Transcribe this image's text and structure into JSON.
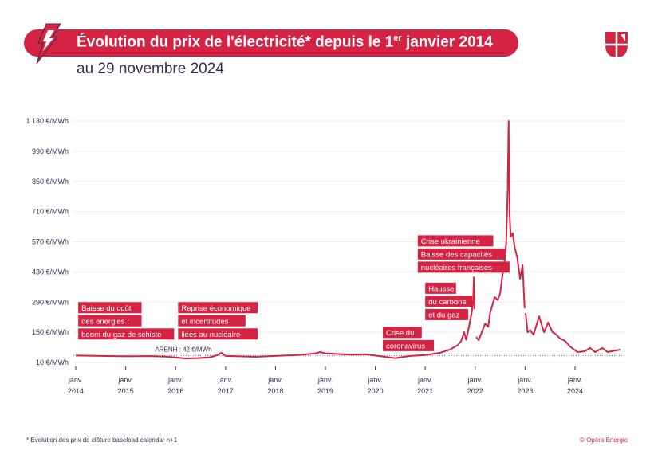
{
  "header": {
    "title_main": "Évolution du prix de l'électricité* depuis le 1",
    "title_sup": "er",
    "title_end": " janvier 2014",
    "subtitle": "au 29 novembre 2024"
  },
  "footer": {
    "note": "* Évolution des prix de clôture baseload calendar n+1",
    "copyright": "© Opéra Énergie"
  },
  "colors": {
    "accent": "#d52443",
    "text": "#3d2a4f",
    "grid": "#eeeeee"
  },
  "icons": {
    "left": "lightning-bolt-icon",
    "right": "opera-energie-logo"
  },
  "chart_data": {
    "type": "line",
    "ylim": [
      10,
      1130
    ],
    "yticks": [
      10,
      150,
      290,
      430,
      570,
      710,
      850,
      990,
      1130
    ],
    "ytick_labels": [
      "10 €/MWh",
      "150 €/MWh",
      "290 €/MWh",
      "430 €/MWh",
      "570 €/MWh",
      "710 €/MWh",
      "850 €/MWh",
      "990 €/MWh",
      "1 130 €/MWh"
    ],
    "xticks": [
      2014,
      2015,
      2016,
      2017,
      2018,
      2019,
      2020,
      2021,
      2022,
      2023,
      2024
    ],
    "xtick_labels": [
      [
        "janv.",
        "2014"
      ],
      [
        "janv.",
        "2015"
      ],
      [
        "janv.",
        "2016"
      ],
      [
        "janv.",
        "2017"
      ],
      [
        "janv.",
        "2018"
      ],
      [
        "janv.",
        "2019"
      ],
      [
        "janv.",
        "2020"
      ],
      [
        "janv.",
        "2021"
      ],
      [
        "janv.",
        "2022"
      ],
      [
        "janv.",
        "2023"
      ],
      [
        "janv.",
        "2024"
      ]
    ],
    "grid": true,
    "reference_line": {
      "value": 42,
      "label": "ARENH : 42 €/MWh"
    },
    "series": [
      {
        "segments": [
          [
            [
              2014.0,
              42
            ],
            [
              2014.25,
              41
            ],
            [
              2014.5,
              40
            ],
            [
              2014.75,
              39
            ],
            [
              2015.0,
              38
            ],
            [
              2015.5,
              39
            ],
            [
              2015.8,
              37
            ],
            [
              2016.0,
              33
            ],
            [
              2016.2,
              28
            ],
            [
              2016.45,
              30
            ],
            [
              2016.7,
              34
            ],
            [
              2016.85,
              45
            ],
            [
              2016.92,
              55
            ],
            [
              2017.0,
              40
            ],
            [
              2017.3,
              38
            ],
            [
              2017.6,
              36
            ],
            [
              2018.0,
              40
            ],
            [
              2018.5,
              45
            ],
            [
              2018.8,
              52
            ],
            [
              2018.9,
              58
            ],
            [
              2019.0,
              52
            ],
            [
              2019.5,
              46
            ],
            [
              2019.8,
              48
            ],
            [
              2020.0,
              42
            ],
            [
              2020.25,
              34
            ],
            [
              2020.4,
              30
            ],
            [
              2020.7,
              40
            ],
            [
              2021.0,
              44
            ],
            [
              2021.3,
              55
            ],
            [
              2021.5,
              70
            ],
            [
              2021.65,
              90
            ],
            [
              2021.72,
              110
            ],
            [
              2021.78,
              150
            ],
            [
              2021.82,
              115
            ],
            [
              2021.88,
              180
            ],
            [
              2021.93,
              240
            ],
            [
              2021.96,
              300
            ],
            [
              2021.975,
              405
            ],
            [
              2021.985,
              260
            ],
            [
              2021.995,
              258
            ]
          ],
          [
            [
              2022.02,
              128
            ],
            [
              2022.07,
              113
            ],
            [
              2022.15,
              160
            ],
            [
              2022.2,
              190
            ],
            [
              2022.26,
              175
            ],
            [
              2022.3,
              240
            ],
            [
              2022.39,
              313
            ],
            [
              2022.45,
              300
            ],
            [
              2022.5,
              330
            ],
            [
              2022.55,
              420
            ],
            [
              2022.58,
              461
            ],
            [
              2022.62,
              560
            ],
            [
              2022.65,
              800
            ],
            [
              2022.67,
              1130
            ],
            [
              2022.69,
              700
            ],
            [
              2022.71,
              594
            ],
            [
              2022.75,
              610
            ],
            [
              2022.79,
              546
            ],
            [
              2022.84,
              500
            ],
            [
              2022.9,
              398
            ],
            [
              2022.95,
              461
            ],
            [
              2022.99,
              261
            ]
          ],
          [
            [
              2023.01,
              239
            ],
            [
              2023.05,
              150
            ],
            [
              2023.1,
              160
            ],
            [
              2023.17,
              139
            ],
            [
              2023.28,
              224
            ],
            [
              2023.35,
              170
            ],
            [
              2023.38,
              150
            ],
            [
              2023.46,
              195
            ],
            [
              2023.55,
              150
            ],
            [
              2023.62,
              140
            ],
            [
              2023.7,
              121
            ],
            [
              2023.8,
              110
            ],
            [
              2023.9,
              84
            ],
            [
              2024.05,
              58
            ],
            [
              2024.2,
              62
            ],
            [
              2024.3,
              77
            ],
            [
              2024.4,
              58
            ],
            [
              2024.55,
              77
            ],
            [
              2024.65,
              58
            ],
            [
              2024.8,
              65
            ],
            [
              2024.91,
              69
            ]
          ]
        ]
      }
    ],
    "annotations": [
      {
        "lines": [
          "Baisse du coût",
          "des énergies :",
          "boom du gaz de schiste"
        ],
        "year": 2014.05,
        "top": 290
      },
      {
        "lines": [
          "Reprise économique",
          "et incertitudes",
          "liées au nucléaire"
        ],
        "year": 2016.05,
        "top": 290
      },
      {
        "lines": [
          "Crise du",
          "coronavirus"
        ],
        "year": 2020.15,
        "top": 175
      },
      {
        "lines": [
          "Hausse",
          "du carbone",
          "et du gaz"
        ],
        "year": 2021.0,
        "top": 380
      },
      {
        "lines": [
          "Crise ukrainienne",
          "Baisse des capacités",
          "nucléaires françaises"
        ],
        "year": 2020.85,
        "top": 600
      }
    ]
  }
}
